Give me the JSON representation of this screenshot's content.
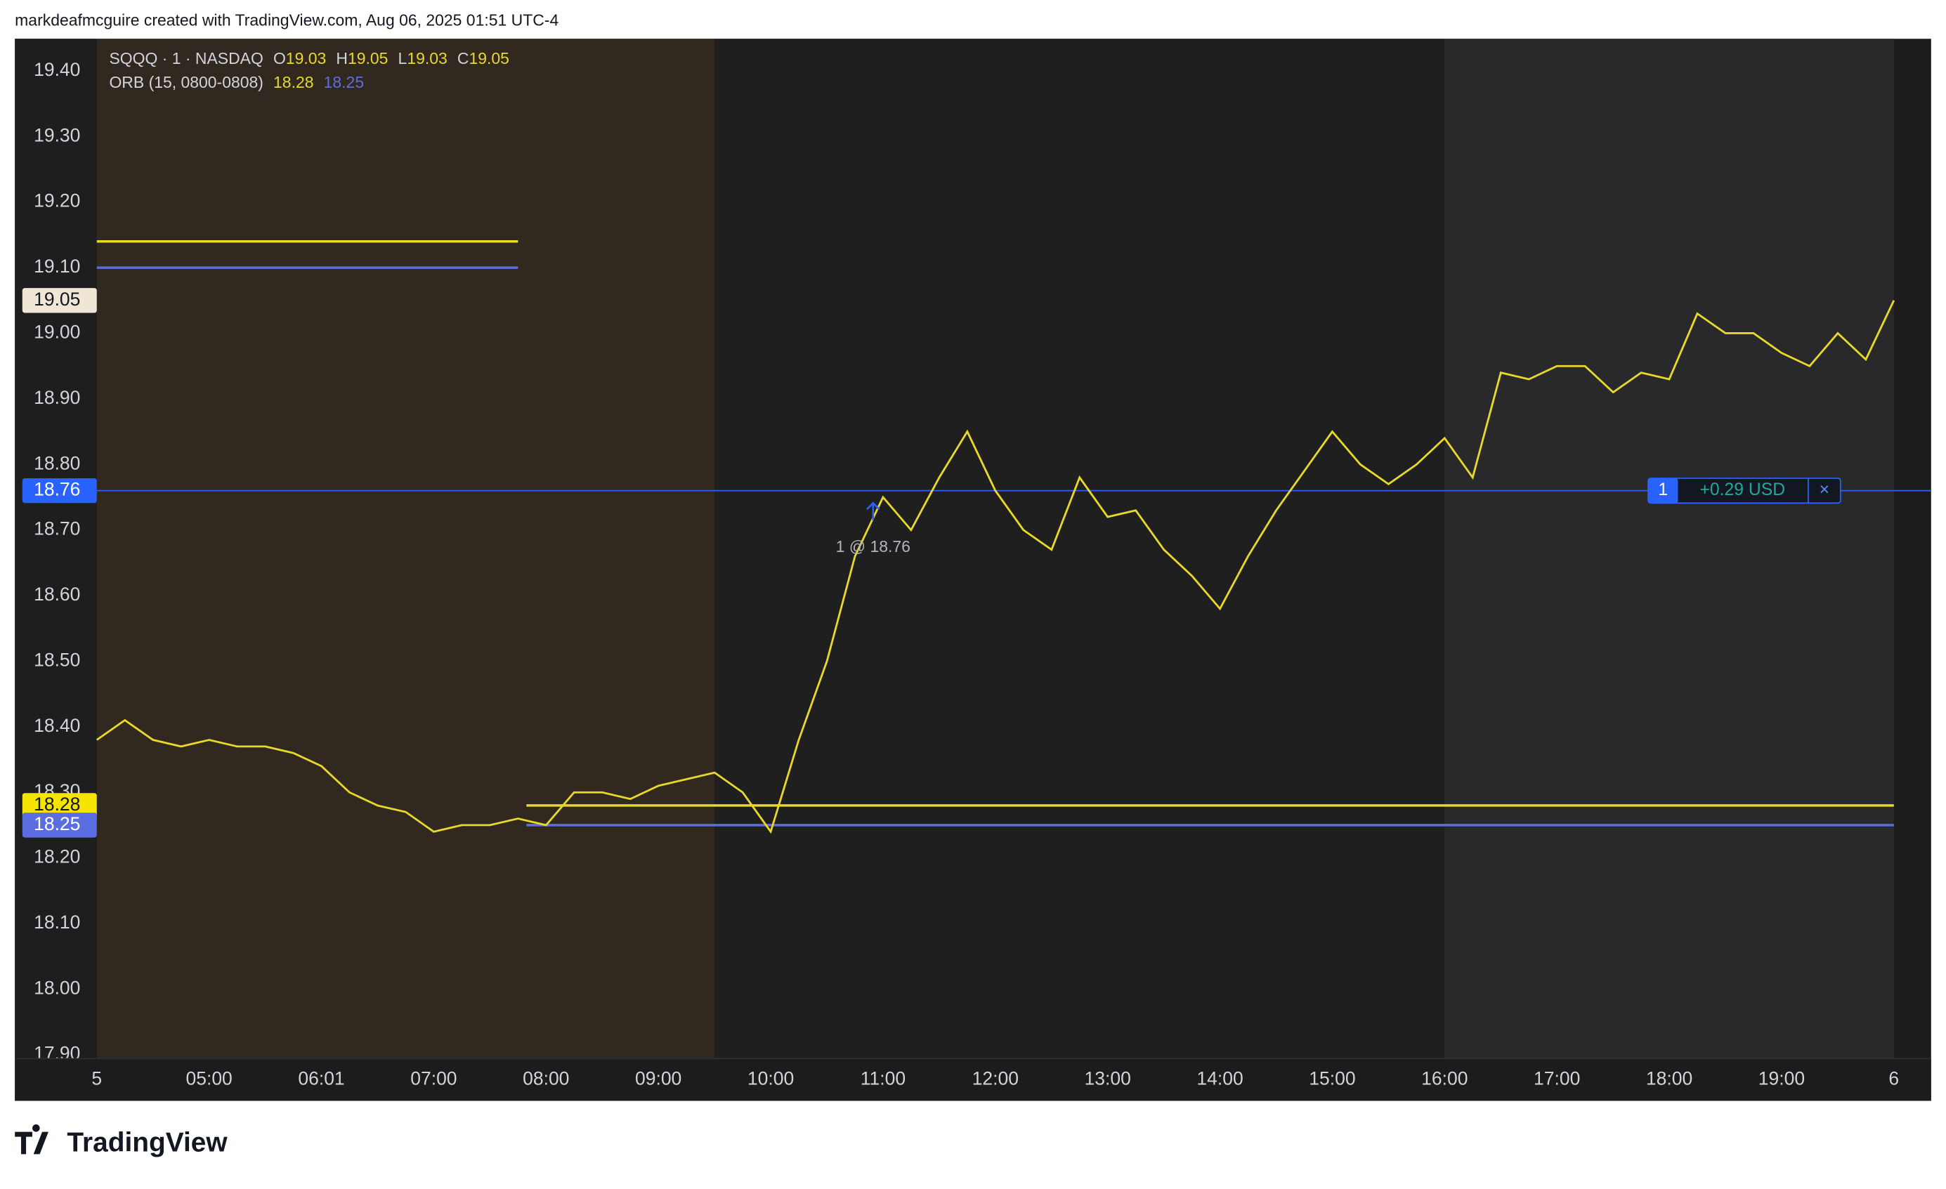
{
  "header": "markdeafmcguire created with TradingView.com, Aug 06, 2025 01:51 UTC-4",
  "footer": "TradingView",
  "chart_data": {
    "type": "line",
    "series": [
      {
        "name": "SQQQ · 1 · NASDAQ",
        "color": "#e8d829",
        "values": [
          18.38,
          18.41,
          18.38,
          18.37,
          18.38,
          18.37,
          18.37,
          18.36,
          18.34,
          18.3,
          18.28,
          18.27,
          18.24,
          18.25,
          18.25,
          18.26,
          18.25,
          18.3,
          18.3,
          18.29,
          18.31,
          18.32,
          18.33,
          18.3,
          18.24,
          18.38,
          18.5,
          18.66,
          18.75,
          18.7,
          18.78,
          18.85,
          18.76,
          18.7,
          18.67,
          18.78,
          18.72,
          18.73,
          18.67,
          18.63,
          18.58,
          18.66,
          18.73,
          18.79,
          18.85,
          18.8,
          18.77,
          18.8,
          18.84,
          18.78,
          18.94,
          18.93,
          18.95,
          18.95,
          18.91,
          18.94,
          18.93,
          19.03,
          19.0,
          19.0,
          18.97,
          18.95,
          19.0,
          18.96,
          19.05
        ]
      }
    ],
    "categories": [
      "5",
      null,
      null,
      null,
      "05:00",
      null,
      null,
      null,
      "06:01",
      null,
      null,
      null,
      "07:00",
      null,
      null,
      null,
      "08:00",
      null,
      null,
      null,
      "09:00",
      null,
      null,
      null,
      "10:00",
      null,
      null,
      null,
      "11:00",
      null,
      null,
      null,
      "12:00",
      null,
      null,
      null,
      "13:00",
      null,
      null,
      null,
      "14:00",
      null,
      null,
      null,
      "15:00",
      null,
      null,
      null,
      "16:00",
      null,
      null,
      null,
      "17:00",
      null,
      null,
      null,
      "18:00",
      null,
      null,
      null,
      "19:00",
      null,
      null,
      null,
      "6"
    ],
    "last_bar": [
      {
        "label": "O",
        "value": 19.03
      },
      {
        "label": "H",
        "value": 19.05
      },
      {
        "label": "L",
        "value": 19.03
      },
      {
        "label": "C",
        "value": 19.05
      }
    ],
    "indicator": {
      "name": "ORB (15, 0800-0808)",
      "values": [
        18.28,
        18.25
      ],
      "colors": [
        "#e8d829",
        "#5b6ee1"
      ]
    },
    "premarket_levels": {
      "values": [
        19.14,
        19.1
      ],
      "colors": [
        "#e8d829",
        "#5b6ee1"
      ]
    },
    "position": {
      "quantity": 1,
      "price": 18.76,
      "pnl": 0.29,
      "pnl_label": "+0.29 USD",
      "entry_label": "1 @ 18.76",
      "close_label": "×",
      "color": "#2962ff"
    },
    "price_tags": [
      {
        "value": 19.05,
        "color": "#f0e6d6",
        "text_color": "#131722"
      },
      {
        "value": 18.76,
        "color": "#2962ff",
        "text_color": "#ffffff"
      },
      {
        "value": 18.28,
        "color": "#f5e400",
        "text_color": "#131722"
      },
      {
        "value": 18.25,
        "color": "#5b6ee1",
        "text_color": "#ffffff"
      }
    ],
    "ylim": [
      17.894,
      19.449
    ],
    "yticks": [
      {
        "value": 17.9,
        "label": "17.90"
      },
      {
        "value": 18.0,
        "label": "18.00"
      },
      {
        "value": 18.1,
        "label": "18.10"
      },
      {
        "value": 18.2,
        "label": "18.20"
      },
      {
        "value": 18.3,
        "label": "18.30"
      },
      {
        "value": 18.4,
        "label": "18.40"
      },
      {
        "value": 18.5,
        "label": "18.50"
      },
      {
        "value": 18.6,
        "label": "18.60"
      },
      {
        "value": 18.7,
        "label": "18.70"
      },
      {
        "value": 18.8,
        "label": "18.80"
      },
      {
        "value": 18.9,
        "label": "18.90"
      },
      {
        "value": 19.0,
        "label": "19.00"
      },
      {
        "value": 19.1,
        "label": "19.10"
      },
      {
        "value": 19.2,
        "label": "19.20"
      },
      {
        "value": 19.3,
        "label": "19.30"
      },
      {
        "value": 19.4,
        "label": "19.40"
      }
    ],
    "grid": false
  }
}
